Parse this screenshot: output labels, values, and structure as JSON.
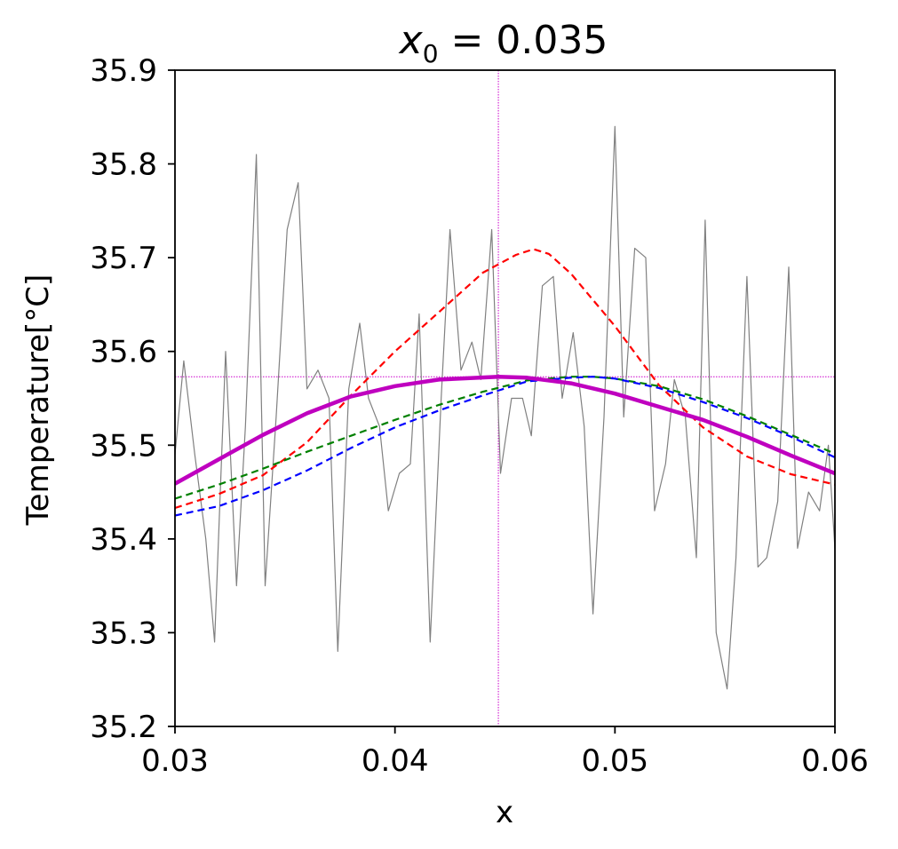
{
  "title": {
    "var": "x",
    "sub": "0",
    "rest": " = 0.035"
  },
  "chart_data": {
    "type": "line",
    "xlabel": "x",
    "ylabel": "Temperature[°C]",
    "xlim": [
      0.03,
      0.06
    ],
    "ylim": [
      35.2,
      35.9
    ],
    "xticks": [
      0.03,
      0.04,
      0.05,
      0.06
    ],
    "xtick_labels": [
      "0.03",
      "0.04",
      "0.05",
      "0.06"
    ],
    "yticks": [
      35.2,
      35.3,
      35.4,
      35.5,
      35.6,
      35.7,
      35.8,
      35.9
    ],
    "ytick_labels": [
      "35.2",
      "35.3",
      "35.4",
      "35.5",
      "35.6",
      "35.7",
      "35.8",
      "35.9"
    ],
    "grid": false,
    "reference_lines": {
      "x": 0.0447,
      "y": 35.573,
      "color": "#cc00cc"
    },
    "series": [
      {
        "key": "noisy",
        "color": "#808080",
        "dash": "",
        "width": 1.2,
        "x": [
          0.03,
          0.0304,
          0.0309,
          0.0314,
          0.0318,
          0.0323,
          0.0328,
          0.0332,
          0.0337,
          0.0341,
          0.0346,
          0.0351,
          0.0356,
          0.036,
          0.0365,
          0.037,
          0.0374,
          0.0379,
          0.0384,
          0.0388,
          0.0393,
          0.0397,
          0.0402,
          0.0407,
          0.0411,
          0.0416,
          0.0421,
          0.0425,
          0.043,
          0.0435,
          0.0439,
          0.0444,
          0.0448,
          0.0453,
          0.0458,
          0.0462,
          0.0467,
          0.0472,
          0.0476,
          0.0481,
          0.0486,
          0.049,
          0.0495,
          0.05,
          0.0504,
          0.0509,
          0.0514,
          0.0518,
          0.0523,
          0.0527,
          0.0532,
          0.0537,
          0.0541,
          0.0546,
          0.0551,
          0.0555,
          0.056,
          0.0565,
          0.0569,
          0.0574,
          0.0579,
          0.0583,
          0.0588,
          0.0593,
          0.0597,
          0.06
        ],
        "y": [
          35.49,
          35.59,
          35.49,
          35.4,
          35.29,
          35.6,
          35.35,
          35.52,
          35.81,
          35.35,
          35.53,
          35.73,
          35.78,
          35.56,
          35.58,
          35.55,
          35.28,
          35.56,
          35.63,
          35.55,
          35.52,
          35.43,
          35.47,
          35.48,
          35.64,
          35.29,
          35.55,
          35.73,
          35.58,
          35.61,
          35.57,
          35.73,
          35.47,
          35.55,
          35.55,
          35.51,
          35.67,
          35.68,
          35.55,
          35.62,
          35.52,
          35.32,
          35.53,
          35.84,
          35.53,
          35.71,
          35.7,
          35.43,
          35.48,
          35.57,
          35.53,
          35.38,
          35.74,
          35.3,
          35.24,
          35.38,
          35.68,
          35.37,
          35.38,
          35.44,
          35.69,
          35.39,
          35.45,
          35.43,
          35.5,
          35.39
        ]
      },
      {
        "key": "red-dashed",
        "color": "#ff0000",
        "dash": "8,5",
        "width": 2.2,
        "x": [
          0.03,
          0.032,
          0.034,
          0.036,
          0.038,
          0.04,
          0.042,
          0.044,
          0.0455,
          0.0463,
          0.047,
          0.048,
          0.05,
          0.052,
          0.054,
          0.056,
          0.058,
          0.06
        ],
        "y": [
          35.433,
          35.448,
          35.468,
          35.503,
          35.553,
          35.6,
          35.642,
          35.684,
          35.703,
          35.709,
          35.704,
          35.683,
          35.627,
          35.564,
          35.519,
          35.488,
          35.469,
          35.458
        ]
      },
      {
        "key": "green-dashed",
        "color": "#008000",
        "dash": "8,5",
        "width": 2.2,
        "x": [
          0.03,
          0.032,
          0.034,
          0.036,
          0.038,
          0.04,
          0.042,
          0.044,
          0.046,
          0.048,
          0.049,
          0.05,
          0.052,
          0.054,
          0.056,
          0.058,
          0.06
        ],
        "y": [
          35.443,
          35.458,
          35.475,
          35.493,
          35.51,
          35.527,
          35.543,
          35.557,
          35.569,
          35.573,
          35.573,
          35.571,
          35.563,
          35.549,
          35.531,
          35.511,
          35.491
        ]
      },
      {
        "key": "blue-dashed",
        "color": "#0000ff",
        "dash": "8,5",
        "width": 2.2,
        "x": [
          0.03,
          0.032,
          0.034,
          0.036,
          0.038,
          0.04,
          0.042,
          0.044,
          0.046,
          0.048,
          0.049,
          0.05,
          0.052,
          0.054,
          0.056,
          0.058,
          0.06
        ],
        "y": [
          35.425,
          35.435,
          35.452,
          35.473,
          35.497,
          35.519,
          35.537,
          35.553,
          35.568,
          35.572,
          35.573,
          35.571,
          35.561,
          35.546,
          35.529,
          35.509,
          35.487
        ]
      },
      {
        "key": "magenta-solid",
        "color": "#bf00bf",
        "dash": "",
        "width": 4.5,
        "x": [
          0.03,
          0.032,
          0.034,
          0.036,
          0.038,
          0.04,
          0.042,
          0.0447,
          0.046,
          0.048,
          0.05,
          0.052,
          0.054,
          0.056,
          0.058,
          0.06
        ],
        "y": [
          35.459,
          35.485,
          35.511,
          35.534,
          35.552,
          35.563,
          35.57,
          35.573,
          35.572,
          35.566,
          35.555,
          35.541,
          35.527,
          35.509,
          35.489,
          35.47
        ]
      }
    ]
  }
}
